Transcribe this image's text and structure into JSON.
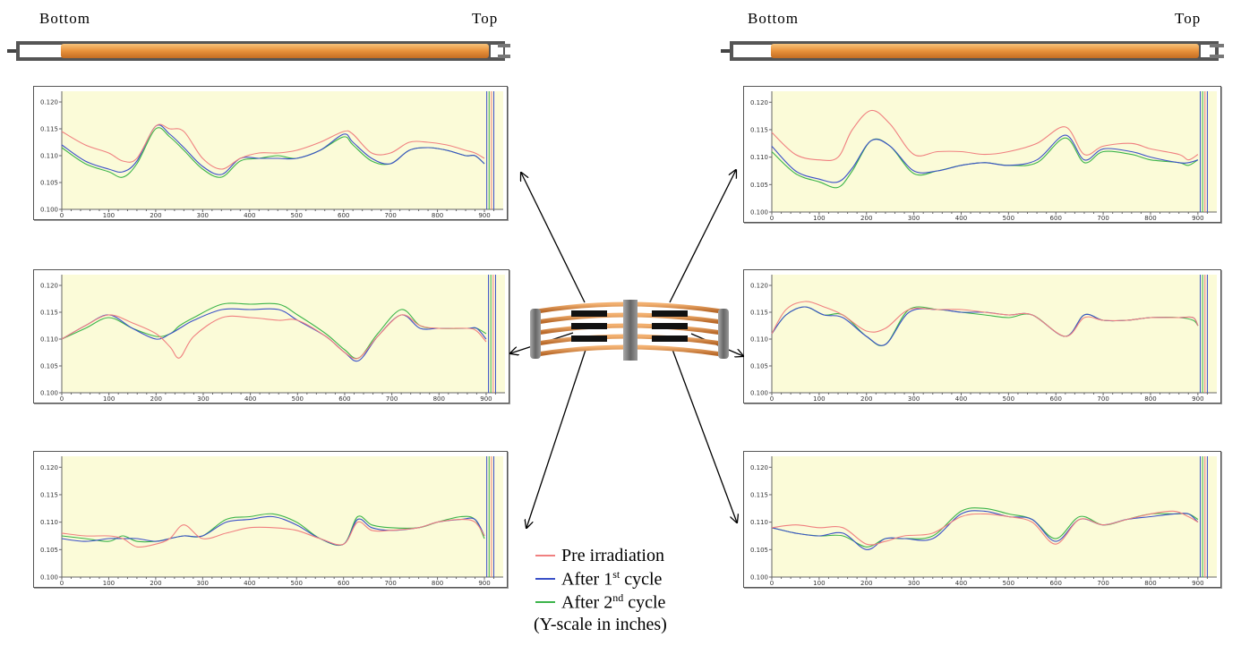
{
  "header": {
    "left": {
      "bottom_label": "Bottom",
      "top_label": "Top"
    },
    "right": {
      "bottom_label": "Bottom",
      "top_label": "Top"
    }
  },
  "colors": {
    "pre": "#f08080",
    "cycle1": "#3a50c8",
    "cycle2": "#3cb44a",
    "plot_bg": "#fbfbd8",
    "rod": "#e8913a",
    "axis": "#666666"
  },
  "legend": {
    "items": [
      {
        "label": "Pre irradiation",
        "color_key": "pre"
      },
      {
        "label": "After 1",
        "sup": "st",
        "tail": " cycle",
        "color_key": "cycle1"
      },
      {
        "label": "After 2",
        "sup": "nd",
        "tail": " cycle",
        "color_key": "cycle2"
      }
    ],
    "note": "(Y-scale in inches)"
  },
  "chart_data": [
    {
      "type": "line",
      "position": "left-top",
      "xlim": [
        0,
        940
      ],
      "ylim": [
        0.1,
        0.122
      ],
      "xticks": [
        0,
        100,
        200,
        300,
        400,
        500,
        600,
        700,
        800,
        900
      ],
      "yticks": [
        0.1,
        0.105,
        0.11,
        0.115,
        0.12
      ],
      "x": [
        0,
        50,
        100,
        130,
        160,
        200,
        230,
        260,
        300,
        340,
        380,
        420,
        460,
        500,
        550,
        600,
        620,
        660,
        700,
        740,
        780,
        820,
        860,
        880,
        900
      ],
      "series": [
        {
          "key": "pre",
          "values": [
            0.1145,
            0.112,
            0.1105,
            0.109,
            0.1095,
            0.1155,
            0.115,
            0.1145,
            0.1095,
            0.1075,
            0.1095,
            0.1105,
            0.1105,
            0.111,
            0.1125,
            0.1145,
            0.114,
            0.1105,
            0.1105,
            0.1125,
            0.1125,
            0.112,
            0.111,
            0.1105,
            0.1095
          ]
        },
        {
          "key": "cycle1",
          "values": [
            0.112,
            0.109,
            0.1075,
            0.107,
            0.109,
            0.1155,
            0.114,
            0.1115,
            0.108,
            0.1065,
            0.1095,
            0.1095,
            0.1095,
            0.1095,
            0.111,
            0.114,
            0.1125,
            0.1095,
            0.1085,
            0.111,
            0.1115,
            0.111,
            0.11,
            0.11,
            0.1085
          ]
        },
        {
          "key": "cycle2",
          "values": [
            0.1115,
            0.1085,
            0.107,
            0.106,
            0.1085,
            0.115,
            0.1135,
            0.111,
            0.1075,
            0.106,
            0.109,
            0.1095,
            0.11,
            0.1095,
            0.111,
            0.1135,
            0.112,
            0.109,
            0.1085,
            0.111,
            0.1115,
            0.111,
            0.11,
            0.11,
            0.1085
          ]
        }
      ]
    },
    {
      "type": "line",
      "position": "left-middle",
      "xlim": [
        0,
        940
      ],
      "ylim": [
        0.1,
        0.122
      ],
      "xticks": [
        0,
        100,
        200,
        300,
        400,
        500,
        600,
        700,
        800,
        900
      ],
      "yticks": [
        0.1,
        0.105,
        0.11,
        0.115,
        0.12
      ],
      "x": [
        0,
        50,
        100,
        150,
        200,
        230,
        250,
        280,
        340,
        400,
        460,
        500,
        560,
        600,
        630,
        670,
        720,
        760,
        800,
        860,
        880,
        900
      ],
      "series": [
        {
          "key": "pre",
          "values": [
            0.11,
            0.1125,
            0.1145,
            0.113,
            0.111,
            0.1085,
            0.1065,
            0.1105,
            0.114,
            0.114,
            0.1135,
            0.1135,
            0.1105,
            0.1075,
            0.1065,
            0.1105,
            0.1145,
            0.1125,
            0.112,
            0.112,
            0.1115,
            0.1095
          ]
        },
        {
          "key": "cycle1",
          "values": [
            0.11,
            0.1125,
            0.1145,
            0.112,
            0.11,
            0.111,
            0.112,
            0.1135,
            0.1155,
            0.1155,
            0.1155,
            0.1135,
            0.1105,
            0.1075,
            0.106,
            0.1105,
            0.1145,
            0.112,
            0.112,
            0.112,
            0.112,
            0.11
          ]
        },
        {
          "key": "cycle2",
          "values": [
            0.11,
            0.112,
            0.114,
            0.112,
            0.1105,
            0.111,
            0.1125,
            0.114,
            0.1165,
            0.1165,
            0.1165,
            0.1145,
            0.111,
            0.108,
            0.1065,
            0.111,
            0.1155,
            0.1125,
            0.112,
            0.112,
            0.112,
            0.111
          ]
        }
      ]
    },
    {
      "type": "line",
      "position": "left-bottom",
      "xlim": [
        0,
        940
      ],
      "ylim": [
        0.1,
        0.122
      ],
      "xticks": [
        0,
        100,
        200,
        300,
        400,
        500,
        600,
        700,
        800,
        900
      ],
      "yticks": [
        0.1,
        0.105,
        0.11,
        0.115,
        0.12
      ],
      "x": [
        0,
        50,
        100,
        130,
        160,
        200,
        230,
        260,
        300,
        350,
        400,
        450,
        500,
        550,
        600,
        630,
        660,
        700,
        760,
        800,
        850,
        880,
        900
      ],
      "series": [
        {
          "key": "pre",
          "values": [
            0.108,
            0.1075,
            0.1075,
            0.107,
            0.1055,
            0.106,
            0.107,
            0.1095,
            0.107,
            0.108,
            0.109,
            0.109,
            0.1085,
            0.107,
            0.106,
            0.11,
            0.1085,
            0.1085,
            0.109,
            0.11,
            0.1105,
            0.11,
            0.1075
          ]
        },
        {
          "key": "cycle1",
          "values": [
            0.107,
            0.1065,
            0.107,
            0.107,
            0.107,
            0.1065,
            0.107,
            0.1075,
            0.1075,
            0.11,
            0.1105,
            0.111,
            0.1095,
            0.107,
            0.106,
            0.1105,
            0.109,
            0.1085,
            0.109,
            0.11,
            0.1105,
            0.1105,
            0.1075
          ]
        },
        {
          "key": "cycle2",
          "values": [
            0.1075,
            0.107,
            0.1065,
            0.1075,
            0.1065,
            0.1065,
            0.107,
            0.1075,
            0.1075,
            0.1105,
            0.111,
            0.1115,
            0.11,
            0.107,
            0.106,
            0.111,
            0.1095,
            0.109,
            0.109,
            0.11,
            0.111,
            0.1105,
            0.107
          ]
        }
      ]
    },
    {
      "type": "line",
      "position": "right-top",
      "xlim": [
        0,
        940
      ],
      "ylim": [
        0.1,
        0.122
      ],
      "xticks": [
        0,
        100,
        200,
        300,
        400,
        500,
        600,
        700,
        800,
        900
      ],
      "yticks": [
        0.1,
        0.105,
        0.11,
        0.115,
        0.12
      ],
      "x": [
        0,
        50,
        100,
        140,
        170,
        210,
        250,
        300,
        350,
        400,
        450,
        500,
        560,
        620,
        660,
        700,
        760,
        800,
        860,
        880,
        900
      ],
      "series": [
        {
          "key": "pre",
          "values": [
            0.1145,
            0.1105,
            0.1095,
            0.11,
            0.115,
            0.1185,
            0.116,
            0.1105,
            0.111,
            0.111,
            0.1105,
            0.111,
            0.1125,
            0.1155,
            0.1105,
            0.112,
            0.1125,
            0.1115,
            0.1105,
            0.1095,
            0.1105
          ]
        },
        {
          "key": "cycle1",
          "values": [
            0.112,
            0.1075,
            0.106,
            0.1055,
            0.108,
            0.113,
            0.112,
            0.1075,
            0.1075,
            0.1085,
            0.109,
            0.1085,
            0.1095,
            0.114,
            0.1095,
            0.1115,
            0.111,
            0.11,
            0.109,
            0.109,
            0.1095
          ]
        },
        {
          "key": "cycle2",
          "values": [
            0.111,
            0.107,
            0.1055,
            0.1045,
            0.1075,
            0.113,
            0.112,
            0.107,
            0.1075,
            0.1085,
            0.109,
            0.1085,
            0.109,
            0.1135,
            0.109,
            0.111,
            0.1105,
            0.1095,
            0.109,
            0.1085,
            0.1095
          ]
        }
      ]
    },
    {
      "type": "line",
      "position": "right-middle",
      "xlim": [
        0,
        940
      ],
      "ylim": [
        0.1,
        0.122
      ],
      "xticks": [
        0,
        100,
        200,
        300,
        400,
        500,
        600,
        700,
        800,
        900
      ],
      "yticks": [
        0.1,
        0.105,
        0.11,
        0.115,
        0.12
      ],
      "x": [
        0,
        30,
        70,
        110,
        150,
        200,
        240,
        290,
        350,
        400,
        450,
        500,
        550,
        620,
        660,
        700,
        750,
        800,
        860,
        890,
        900
      ],
      "series": [
        {
          "key": "pre",
          "values": [
            0.111,
            0.1155,
            0.117,
            0.116,
            0.1145,
            0.1115,
            0.112,
            0.1155,
            0.1155,
            0.1155,
            0.115,
            0.1145,
            0.1145,
            0.1105,
            0.114,
            0.1135,
            0.1135,
            0.114,
            0.114,
            0.114,
            0.1125
          ]
        },
        {
          "key": "cycle1",
          "values": [
            0.111,
            0.1145,
            0.116,
            0.1145,
            0.114,
            0.1105,
            0.109,
            0.115,
            0.1155,
            0.115,
            0.115,
            0.1145,
            0.1145,
            0.1105,
            0.1145,
            0.1135,
            0.1135,
            0.114,
            0.114,
            0.114,
            0.1125
          ]
        },
        {
          "key": "cycle2",
          "values": [
            0.111,
            0.1145,
            0.116,
            0.1145,
            0.1145,
            0.1105,
            0.109,
            0.1155,
            0.1155,
            0.115,
            0.1145,
            0.114,
            0.1145,
            0.1105,
            0.1145,
            0.1135,
            0.1135,
            0.114,
            0.114,
            0.1135,
            0.1125
          ]
        }
      ]
    },
    {
      "type": "line",
      "position": "right-bottom",
      "xlim": [
        0,
        940
      ],
      "ylim": [
        0.1,
        0.122
      ],
      "xticks": [
        0,
        100,
        200,
        300,
        400,
        500,
        600,
        700,
        800,
        900
      ],
      "yticks": [
        0.1,
        0.105,
        0.11,
        0.115,
        0.12
      ],
      "x": [
        0,
        50,
        100,
        150,
        200,
        240,
        280,
        340,
        400,
        450,
        500,
        550,
        600,
        650,
        700,
        750,
        800,
        850,
        880,
        900
      ],
      "series": [
        {
          "key": "pre",
          "values": [
            0.109,
            0.1095,
            0.109,
            0.109,
            0.106,
            0.1065,
            0.1075,
            0.108,
            0.111,
            0.1115,
            0.111,
            0.11,
            0.106,
            0.1105,
            0.1095,
            0.1105,
            0.1115,
            0.112,
            0.111,
            0.11
          ]
        },
        {
          "key": "cycle1",
          "values": [
            0.109,
            0.108,
            0.1075,
            0.108,
            0.105,
            0.107,
            0.107,
            0.107,
            0.1115,
            0.112,
            0.111,
            0.1105,
            0.1065,
            0.1105,
            0.1095,
            0.1105,
            0.111,
            0.1115,
            0.1115,
            0.11
          ]
        },
        {
          "key": "cycle2",
          "values": [
            0.109,
            0.108,
            0.1075,
            0.1075,
            0.1055,
            0.107,
            0.107,
            0.1075,
            0.112,
            0.1125,
            0.1115,
            0.1105,
            0.107,
            0.111,
            0.1095,
            0.1105,
            0.1115,
            0.1115,
            0.1115,
            0.1105
          ]
        }
      ]
    }
  ]
}
